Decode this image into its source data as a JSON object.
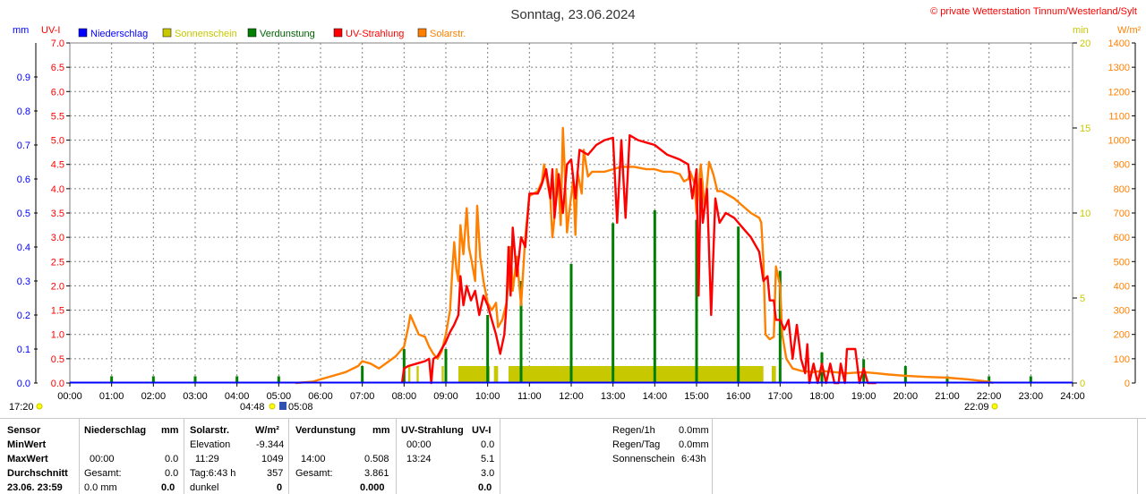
{
  "chart_data": {
    "type": "line",
    "title": "Sonntag, 23.06.2024",
    "copyright": "© private Wetterstation Tinnum/Westerland/Sylt",
    "axes": {
      "mm": {
        "label": "mm",
        "range": [
          0,
          1.0
        ],
        "ticks": [
          "0.0",
          "0.1",
          "0.2",
          "0.3",
          "0.4",
          "0.5",
          "0.6",
          "0.7",
          "0.8",
          "0.9"
        ]
      },
      "uv": {
        "label": "UV-I",
        "range": [
          0,
          7.0
        ],
        "ticks": [
          "0.0",
          "0.5",
          "1.0",
          "1.5",
          "2.0",
          "2.5",
          "3.0",
          "3.5",
          "4.0",
          "4.5",
          "5.0",
          "5.5",
          "6.0",
          "6.5",
          "7.0"
        ]
      },
      "min": {
        "label": "min",
        "range": [
          0,
          20
        ],
        "ticks": [
          "0",
          "5",
          "10",
          "15",
          "20"
        ]
      },
      "wm2": {
        "label": "W/m²",
        "range": [
          0,
          1400
        ],
        "ticks": [
          "0",
          "100",
          "200",
          "300",
          "400",
          "500",
          "600",
          "700",
          "800",
          "900",
          "1000",
          "1100",
          "1200",
          "1300",
          "1400"
        ]
      }
    },
    "x_ticks": [
      "00:00",
      "01:00",
      "02:00",
      "03:00",
      "04:00",
      "05:00",
      "06:00",
      "07:00",
      "08:00",
      "09:00",
      "10:00",
      "11:00",
      "12:00",
      "13:00",
      "14:00",
      "15:00",
      "16:00",
      "17:00",
      "18:00",
      "19:00",
      "20:00",
      "21:00",
      "22:00",
      "23:00",
      "24:00"
    ],
    "legend": [
      {
        "name": "Niederschlag",
        "color": "#0000ff"
      },
      {
        "name": "Sonnenschein",
        "color": "#c8c800"
      },
      {
        "name": "Verdunstung",
        "color": "#008000"
      },
      {
        "name": "UV-Strahlung",
        "color": "#ff0000"
      },
      {
        "name": "Solarstr.",
        "color": "#ff8000"
      }
    ],
    "sun_events": {
      "moonrise": "17:20",
      "sunrise_a": "04:48",
      "sunrise_b": "05:08",
      "sunset": "22:09"
    },
    "series": [
      {
        "name": "Solarstr.",
        "axis": "wm2",
        "color": "#ff8000",
        "points": [
          [
            5.4,
            0
          ],
          [
            5.8,
            5
          ],
          [
            6.0,
            15
          ],
          [
            6.3,
            30
          ],
          [
            6.6,
            45
          ],
          [
            6.9,
            70
          ],
          [
            7.0,
            90
          ],
          [
            7.2,
            80
          ],
          [
            7.4,
            60
          ],
          [
            7.6,
            85
          ],
          [
            7.8,
            110
          ],
          [
            8.0,
            150
          ],
          [
            8.1,
            230
          ],
          [
            8.15,
            280
          ],
          [
            8.25,
            240
          ],
          [
            8.35,
            200
          ],
          [
            8.5,
            190
          ],
          [
            8.6,
            150
          ],
          [
            8.7,
            120
          ],
          [
            8.8,
            100
          ],
          [
            8.9,
            130
          ],
          [
            9.0,
            200
          ],
          [
            9.1,
            300
          ],
          [
            9.15,
            450
          ],
          [
            9.2,
            580
          ],
          [
            9.25,
            470
          ],
          [
            9.3,
            420
          ],
          [
            9.35,
            650
          ],
          [
            9.42,
            530
          ],
          [
            9.5,
            720
          ],
          [
            9.55,
            560
          ],
          [
            9.62,
            500
          ],
          [
            9.7,
            420
          ],
          [
            9.75,
            730
          ],
          [
            9.82,
            520
          ],
          [
            9.9,
            420
          ],
          [
            10.0,
            330
          ],
          [
            10.1,
            300
          ],
          [
            10.2,
            330
          ],
          [
            10.25,
            230
          ],
          [
            10.35,
            260
          ],
          [
            10.45,
            330
          ],
          [
            10.5,
            420
          ],
          [
            10.55,
            560
          ],
          [
            10.6,
            380
          ],
          [
            10.7,
            520
          ],
          [
            10.8,
            320
          ],
          [
            10.9,
            600
          ],
          [
            11.0,
            770
          ],
          [
            11.1,
            780
          ],
          [
            11.2,
            790
          ],
          [
            11.3,
            830
          ],
          [
            11.35,
            900
          ],
          [
            11.4,
            850
          ],
          [
            11.5,
            760
          ],
          [
            11.55,
            600
          ],
          [
            11.6,
            680
          ],
          [
            11.65,
            880
          ],
          [
            11.7,
            810
          ],
          [
            11.75,
            650
          ],
          [
            11.8,
            1050
          ],
          [
            11.85,
            860
          ],
          [
            11.9,
            620
          ],
          [
            11.95,
            700
          ],
          [
            12.05,
            840
          ],
          [
            12.1,
            610
          ],
          [
            12.15,
            870
          ],
          [
            12.25,
            780
          ],
          [
            12.3,
            960
          ],
          [
            12.4,
            850
          ],
          [
            12.5,
            870
          ],
          [
            12.6,
            870
          ],
          [
            12.8,
            870
          ],
          [
            13.0,
            880
          ],
          [
            13.2,
            890
          ],
          [
            13.5,
            890
          ],
          [
            13.8,
            880
          ],
          [
            14.0,
            880
          ],
          [
            14.2,
            870
          ],
          [
            14.4,
            870
          ],
          [
            14.6,
            860
          ],
          [
            14.7,
            830
          ],
          [
            14.8,
            840
          ],
          [
            14.85,
            870
          ],
          [
            14.95,
            820
          ],
          [
            15.0,
            700
          ],
          [
            15.1,
            900
          ],
          [
            15.2,
            720
          ],
          [
            15.3,
            910
          ],
          [
            15.4,
            860
          ],
          [
            15.5,
            790
          ],
          [
            15.6,
            790
          ],
          [
            15.7,
            780
          ],
          [
            15.9,
            760
          ],
          [
            16.1,
            730
          ],
          [
            16.3,
            700
          ],
          [
            16.5,
            680
          ],
          [
            16.55,
            660
          ],
          [
            16.6,
            500
          ],
          [
            16.65,
            200
          ],
          [
            16.75,
            180
          ],
          [
            16.85,
            190
          ],
          [
            16.9,
            480
          ],
          [
            17.0,
            400
          ],
          [
            17.05,
            200
          ],
          [
            17.15,
            100
          ],
          [
            17.3,
            60
          ],
          [
            17.5,
            50
          ],
          [
            17.8,
            45
          ],
          [
            18.0,
            50
          ],
          [
            18.3,
            45
          ],
          [
            18.6,
            40
          ],
          [
            19.0,
            45
          ],
          [
            19.3,
            40
          ],
          [
            19.6,
            35
          ],
          [
            20.0,
            30
          ],
          [
            20.5,
            25
          ],
          [
            21.0,
            22
          ],
          [
            21.5,
            15
          ],
          [
            22.0,
            5
          ],
          [
            22.1,
            0
          ]
        ]
      },
      {
        "name": "UV-Strahlung",
        "axis": "uv",
        "color": "#ff0000",
        "points": [
          [
            7.95,
            0
          ],
          [
            8.0,
            0.3
          ],
          [
            8.1,
            0.35
          ],
          [
            8.3,
            0.4
          ],
          [
            8.5,
            0.45
          ],
          [
            8.6,
            0.5
          ],
          [
            8.65,
            0
          ],
          [
            8.7,
            0.5
          ],
          [
            8.8,
            0.55
          ],
          [
            8.9,
            0.7
          ],
          [
            9.0,
            0.85
          ],
          [
            9.1,
            1.05
          ],
          [
            9.2,
            1.2
          ],
          [
            9.3,
            1.4
          ],
          [
            9.35,
            2.2
          ],
          [
            9.42,
            1.6
          ],
          [
            9.5,
            2.0
          ],
          [
            9.6,
            1.7
          ],
          [
            9.7,
            1.9
          ],
          [
            9.8,
            1.4
          ],
          [
            9.9,
            1.8
          ],
          [
            10.0,
            1.6
          ],
          [
            10.1,
            1.3
          ],
          [
            10.2,
            1.0
          ],
          [
            10.3,
            0.6
          ],
          [
            10.4,
            1.0
          ],
          [
            10.45,
            1.6
          ],
          [
            10.5,
            2.8
          ],
          [
            10.55,
            1.8
          ],
          [
            10.6,
            3.2
          ],
          [
            10.7,
            2.2
          ],
          [
            10.8,
            3.0
          ],
          [
            10.9,
            2.8
          ],
          [
            11.0,
            3.9
          ],
          [
            11.2,
            3.9
          ],
          [
            11.3,
            4.1
          ],
          [
            11.4,
            4.4
          ],
          [
            11.5,
            3.8
          ],
          [
            11.55,
            4.4
          ],
          [
            11.6,
            3.4
          ],
          [
            11.7,
            4.3
          ],
          [
            11.8,
            3.5
          ],
          [
            11.9,
            4.5
          ],
          [
            12.0,
            4.6
          ],
          [
            12.1,
            3.8
          ],
          [
            12.2,
            4.8
          ],
          [
            12.4,
            4.7
          ],
          [
            12.6,
            4.9
          ],
          [
            12.8,
            5.0
          ],
          [
            13.0,
            5.05
          ],
          [
            13.1,
            3.3
          ],
          [
            13.2,
            5.0
          ],
          [
            13.3,
            3.4
          ],
          [
            13.4,
            5.1
          ],
          [
            13.6,
            5.0
          ],
          [
            13.8,
            4.95
          ],
          [
            14.0,
            4.9
          ],
          [
            14.3,
            4.7
          ],
          [
            14.6,
            4.6
          ],
          [
            14.8,
            4.5
          ],
          [
            14.9,
            3.8
          ],
          [
            15.0,
            4.4
          ],
          [
            15.05,
            1.8
          ],
          [
            15.1,
            4.2
          ],
          [
            15.15,
            3.3
          ],
          [
            15.25,
            4.0
          ],
          [
            15.35,
            1.4
          ],
          [
            15.45,
            3.8
          ],
          [
            15.55,
            3.3
          ],
          [
            15.7,
            3.5
          ],
          [
            15.9,
            3.4
          ],
          [
            16.1,
            3.2
          ],
          [
            16.3,
            3.0
          ],
          [
            16.5,
            2.7
          ],
          [
            16.6,
            2.1
          ],
          [
            16.7,
            2.2
          ],
          [
            16.75,
            1.7
          ],
          [
            16.85,
            1.7
          ],
          [
            16.9,
            1.3
          ],
          [
            17.0,
            1.3
          ],
          [
            17.1,
            1.1
          ],
          [
            17.2,
            1.3
          ],
          [
            17.3,
            0.5
          ],
          [
            17.4,
            1.2
          ],
          [
            17.5,
            0.5
          ],
          [
            17.6,
            0.2
          ],
          [
            17.65,
            0.8
          ],
          [
            17.7,
            0
          ],
          [
            17.8,
            0.4
          ],
          [
            17.9,
            0
          ],
          [
            18.0,
            0.4
          ],
          [
            18.1,
            0
          ],
          [
            18.2,
            0.4
          ],
          [
            18.3,
            0
          ],
          [
            18.4,
            0
          ],
          [
            18.45,
            0.4
          ],
          [
            18.55,
            0
          ],
          [
            18.6,
            0.7
          ],
          [
            18.8,
            0.7
          ],
          [
            18.9,
            0
          ],
          [
            19.0,
            0.3
          ],
          [
            19.1,
            0
          ],
          [
            19.3,
            0
          ]
        ]
      },
      {
        "name": "Verdunstung",
        "axis": "mm",
        "color": "#008000",
        "mode": "spikes",
        "points": [
          [
            1.0,
            0.02
          ],
          [
            2.0,
            0.02
          ],
          [
            3.0,
            0.02
          ],
          [
            4.0,
            0.02
          ],
          [
            5.0,
            0.02
          ],
          [
            7.0,
            0.05
          ],
          [
            8.0,
            0.1
          ],
          [
            9.0,
            0.1
          ],
          [
            10.0,
            0.2
          ],
          [
            10.8,
            0.3
          ],
          [
            12.0,
            0.35
          ],
          [
            13.0,
            0.47
          ],
          [
            14.0,
            0.508
          ],
          [
            15.0,
            0.48
          ],
          [
            16.0,
            0.46
          ],
          [
            17.0,
            0.33
          ],
          [
            18.0,
            0.09
          ],
          [
            19.0,
            0.07
          ],
          [
            20.0,
            0.05
          ],
          [
            21.0,
            0.02
          ],
          [
            22.0,
            0.02
          ],
          [
            23.0,
            0.02
          ]
        ]
      },
      {
        "name": "Sonnenschein",
        "axis": "min",
        "color": "#c8c800",
        "mode": "bars",
        "bars": [
          [
            8.1,
            8.15
          ],
          [
            8.3,
            8.35
          ],
          [
            8.9,
            8.95
          ],
          [
            9.3,
            10.05
          ],
          [
            10.15,
            10.25
          ],
          [
            10.5,
            16.6
          ],
          [
            16.8,
            16.9
          ]
        ],
        "bar_value": 1
      }
    ]
  },
  "panel": {
    "sensor": "Sensor",
    "minwert": "MinWert",
    "maxwert": "MaxWert",
    "durchschnitt": "Durchschnitt",
    "datum": "23.06. 23:59",
    "niederschlag": {
      "header": "Niederschlag",
      "unit": "mm",
      "max_time": "00:00",
      "max_val": "0.0",
      "gesamt_label": "Gesamt:",
      "gesamt_val": "0.0",
      "last_val": "0.0 mm",
      "last_bold": "0.0"
    },
    "solar": {
      "header": "Solarstr.",
      "unit": "W/m²",
      "elev_label": "Elevation",
      "elev_val": "-9.344",
      "max_time": "11:29",
      "max_val": "1049",
      "tag_label": "Tag:6:43 h",
      "tag_val": "357",
      "dunkel_label": "dunkel",
      "dunkel_val": "0"
    },
    "verdunstung": {
      "header": "Verdunstung",
      "unit": "mm",
      "max_time": "14:00",
      "max_val": "0.508",
      "gesamt_label": "Gesamt:",
      "gesamt_val": "3.861",
      "last_val": "0.000"
    },
    "uv": {
      "header": "UV-Strahlung",
      "unit": "UV-I",
      "min_time": "00:00",
      "min_val": "0.0",
      "max_time": "13:24",
      "max_val": "5.1",
      "avg_val": "3.0",
      "last_val": "0.0"
    },
    "regen1h_label": "Regen/1h",
    "regen1h_val": "0.0mm",
    "regentag_label": "Regen/Tag",
    "regentag_val": "0.0mm",
    "sonne_label": "Sonnenschein",
    "sonne_val": "6:43h"
  }
}
